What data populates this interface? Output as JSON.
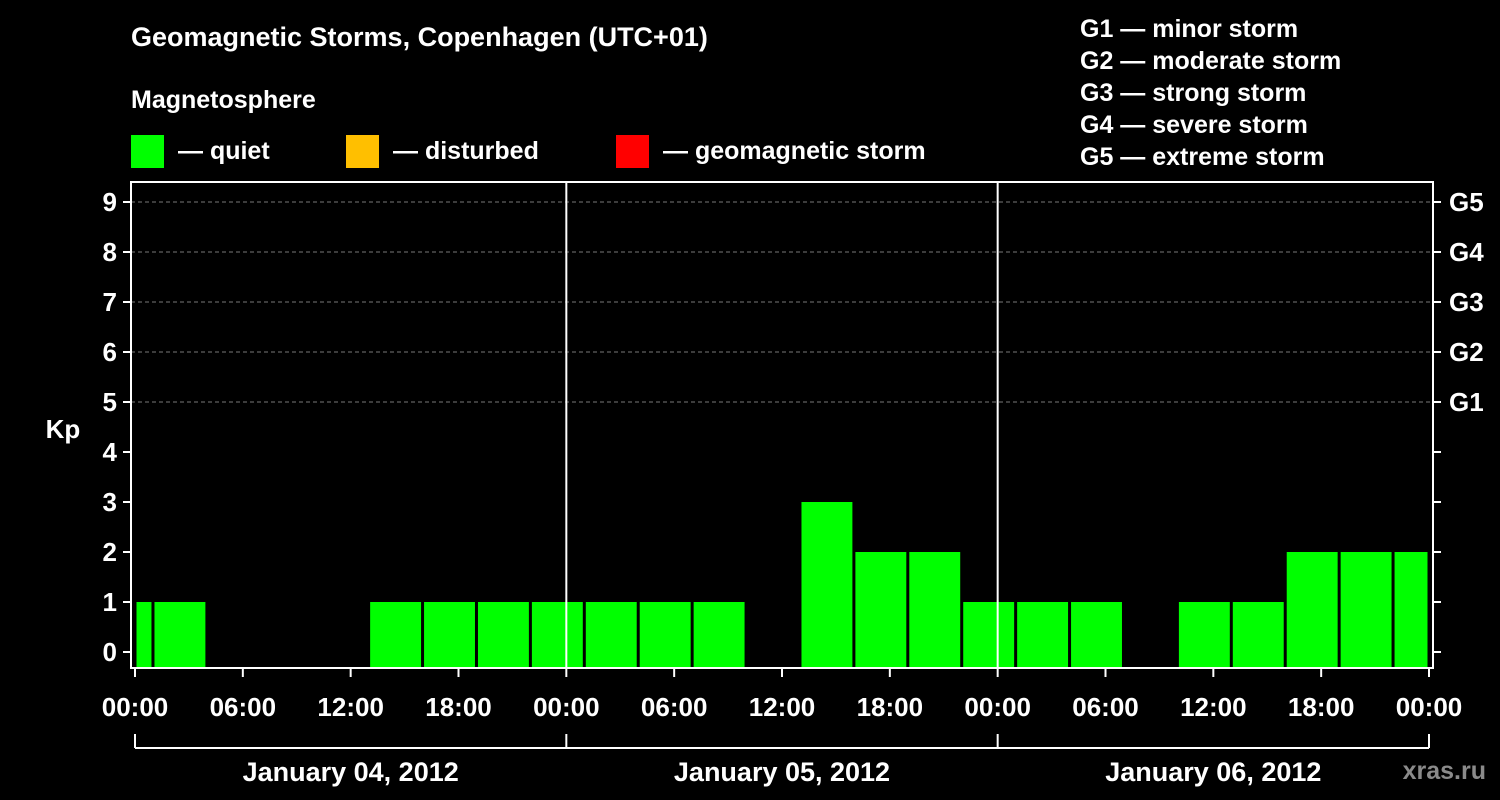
{
  "title": "Geomagnetic Storms, Copenhagen (UTC+01)",
  "subtitle": "Magnetosphere",
  "legend": [
    {
      "label": "— quiet",
      "color": "#00ff00"
    },
    {
      "label": "— disturbed",
      "color": "#ffbf00"
    },
    {
      "label": "— geomagnetic storm",
      "color": "#ff0000"
    }
  ],
  "g_scale": [
    "G1 — minor storm",
    "G2 — moderate storm",
    "G3 — strong storm",
    "G4 — severe storm",
    "G5 — extreme storm"
  ],
  "watermark": "xras.ru",
  "chart_data": {
    "type": "bar",
    "ylabel": "Kp",
    "ylim": [
      0,
      9
    ],
    "yticks": [
      "0",
      "1",
      "2",
      "3",
      "4",
      "5",
      "6",
      "7",
      "8",
      "9"
    ],
    "right_ticks": [
      {
        "value": 5,
        "label": "G1"
      },
      {
        "value": 6,
        "label": "G2"
      },
      {
        "value": 7,
        "label": "G3"
      },
      {
        "value": 8,
        "label": "G4"
      },
      {
        "value": 9,
        "label": "G5"
      }
    ],
    "grid_levels": [
      5,
      6,
      7,
      8,
      9
    ],
    "xlim_hours": [
      0,
      72
    ],
    "xtick_labels": [
      "00:00",
      "06:00",
      "12:00",
      "18:00",
      "00:00",
      "06:00",
      "12:00",
      "18:00",
      "00:00",
      "06:00",
      "12:00",
      "18:00",
      "00:00"
    ],
    "days": [
      "January 04, 2012",
      "January 05, 2012",
      "January 06, 2012"
    ],
    "quiet_color": "#00ff00",
    "bars": [
      {
        "start": 0,
        "end": 1,
        "kp": 1
      },
      {
        "start": 1,
        "end": 4,
        "kp": 1
      },
      {
        "start": 4,
        "end": 7,
        "kp": 0
      },
      {
        "start": 7,
        "end": 10,
        "kp": 0
      },
      {
        "start": 10,
        "end": 13,
        "kp": 0
      },
      {
        "start": 13,
        "end": 16,
        "kp": 1
      },
      {
        "start": 16,
        "end": 19,
        "kp": 1
      },
      {
        "start": 19,
        "end": 22,
        "kp": 1
      },
      {
        "start": 22,
        "end": 25,
        "kp": 1
      },
      {
        "start": 25,
        "end": 28,
        "kp": 1
      },
      {
        "start": 28,
        "end": 31,
        "kp": 1
      },
      {
        "start": 31,
        "end": 34,
        "kp": 1
      },
      {
        "start": 34,
        "end": 37,
        "kp": 0
      },
      {
        "start": 37,
        "end": 40,
        "kp": 3
      },
      {
        "start": 40,
        "end": 43,
        "kp": 2
      },
      {
        "start": 43,
        "end": 46,
        "kp": 2
      },
      {
        "start": 46,
        "end": 49,
        "kp": 1
      },
      {
        "start": 49,
        "end": 52,
        "kp": 1
      },
      {
        "start": 52,
        "end": 55,
        "kp": 1
      },
      {
        "start": 55,
        "end": 58,
        "kp": 0
      },
      {
        "start": 58,
        "end": 61,
        "kp": 1
      },
      {
        "start": 61,
        "end": 64,
        "kp": 1
      },
      {
        "start": 64,
        "end": 67,
        "kp": 2
      },
      {
        "start": 67,
        "end": 70,
        "kp": 2
      },
      {
        "start": 70,
        "end": 72,
        "kp": 2
      }
    ]
  }
}
